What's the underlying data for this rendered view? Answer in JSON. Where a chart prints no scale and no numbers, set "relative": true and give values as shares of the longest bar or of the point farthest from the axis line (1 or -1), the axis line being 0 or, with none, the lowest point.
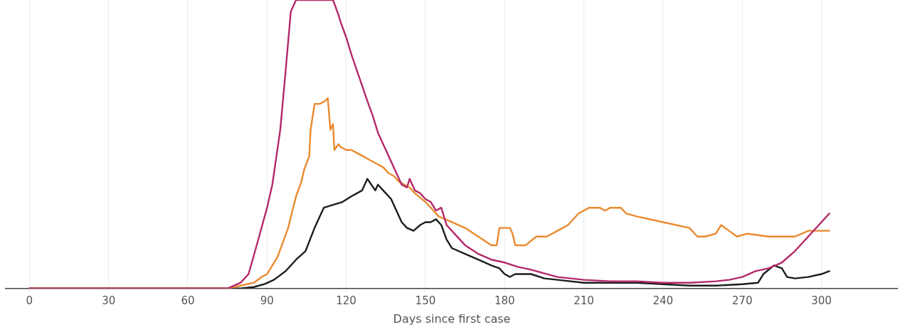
{
  "chart_data": {
    "type": "line",
    "xlabel": "Days since first case",
    "relative": true,
    "grid": "x",
    "marker": "none",
    "line_style": "solid",
    "legend": false,
    "xlim": [
      -9,
      329
    ],
    "xticks": [
      0,
      30,
      60,
      90,
      120,
      150,
      180,
      210,
      240,
      270,
      300
    ],
    "series": [
      {
        "color": "#b4286a",
        "x": [
          0,
          70,
          75,
          80,
          83,
          87,
          90,
          92,
          95,
          97,
          99,
          101,
          115,
          117,
          118,
          120,
          122,
          125,
          128,
          130,
          132,
          135,
          137,
          139,
          141,
          143,
          144,
          146,
          148,
          150,
          152,
          154,
          156,
          158,
          160,
          165,
          170,
          175,
          180,
          185,
          190,
          200,
          210,
          220,
          230,
          240,
          250,
          260,
          265,
          270,
          275,
          280,
          285,
          290,
          295,
          300,
          303
        ],
        "values": [
          0,
          0,
          0,
          0.02,
          0.05,
          0.18,
          0.28,
          0.36,
          0.55,
          0.75,
          0.96,
          1,
          1,
          0.95,
          0.92,
          0.87,
          0.81,
          0.73,
          0.65,
          0.6,
          0.54,
          0.48,
          0.44,
          0.4,
          0.36,
          0.35,
          0.38,
          0.34,
          0.33,
          0.31,
          0.3,
          0.27,
          0.28,
          0.22,
          0.2,
          0.15,
          0.12,
          0.1,
          0.09,
          0.075,
          0.065,
          0.04,
          0.03,
          0.025,
          0.025,
          0.02,
          0.02,
          0.025,
          0.03,
          0.04,
          0.06,
          0.07,
          0.09,
          0.13,
          0.18,
          0.23,
          0.26
        ]
      },
      {
        "color": "#e98a2e",
        "x": [
          0,
          75,
          80,
          85,
          88,
          90,
          94,
          98,
          101,
          103,
          104,
          106,
          106.5,
          108,
          110,
          112,
          113,
          114,
          115,
          115.5,
          117,
          118,
          120,
          122,
          124,
          126,
          128,
          130,
          132,
          134,
          136,
          138,
          140,
          142,
          144,
          146,
          150,
          155,
          160,
          165,
          170,
          175,
          177,
          178,
          182,
          183,
          184,
          188,
          192,
          196,
          200,
          204,
          208,
          212,
          216,
          218,
          220,
          222,
          224,
          226,
          230,
          240,
          250,
          253,
          256,
          260,
          262,
          265,
          268,
          272,
          280,
          290,
          295,
          300,
          303
        ],
        "values": [
          0,
          0,
          0.01,
          0.02,
          0.04,
          0.05,
          0.11,
          0.21,
          0.32,
          0.37,
          0.41,
          0.46,
          0.55,
          0.64,
          0.64,
          0.65,
          0.66,
          0.55,
          0.57,
          0.48,
          0.5,
          0.49,
          0.48,
          0.48,
          0.47,
          0.46,
          0.45,
          0.44,
          0.43,
          0.42,
          0.4,
          0.39,
          0.37,
          0.36,
          0.35,
          0.33,
          0.3,
          0.25,
          0.23,
          0.21,
          0.18,
          0.15,
          0.15,
          0.21,
          0.21,
          0.19,
          0.15,
          0.15,
          0.18,
          0.18,
          0.2,
          0.22,
          0.26,
          0.28,
          0.28,
          0.27,
          0.28,
          0.28,
          0.28,
          0.26,
          0.25,
          0.23,
          0.21,
          0.18,
          0.18,
          0.19,
          0.22,
          0.2,
          0.18,
          0.19,
          0.18,
          0.18,
          0.2,
          0.2,
          0.2
        ]
      },
      {
        "color": "#1c1c1c",
        "x": [
          0,
          80,
          85,
          89,
          92.6,
          97,
          101,
          104.6,
          108,
          111.5,
          115,
          118.6,
          122,
          126,
          128,
          131,
          132,
          134,
          137,
          139,
          141,
          143,
          145.5,
          148,
          150,
          152,
          154,
          156,
          158,
          160,
          165,
          170,
          175,
          178,
          180,
          182,
          184,
          186,
          190,
          195,
          200,
          210,
          220,
          230,
          240,
          250,
          260,
          270,
          276,
          278,
          282,
          285,
          287,
          290,
          295,
          300,
          303
        ],
        "values": [
          0,
          0,
          0.005,
          0.015,
          0.03,
          0.06,
          0.1,
          0.13,
          0.21,
          0.28,
          0.29,
          0.3,
          0.32,
          0.34,
          0.38,
          0.34,
          0.36,
          0.34,
          0.31,
          0.27,
          0.23,
          0.21,
          0.2,
          0.22,
          0.23,
          0.23,
          0.24,
          0.22,
          0.17,
          0.14,
          0.12,
          0.1,
          0.08,
          0.07,
          0.05,
          0.04,
          0.05,
          0.05,
          0.05,
          0.035,
          0.03,
          0.02,
          0.02,
          0.02,
          0.015,
          0.01,
          0.01,
          0.015,
          0.02,
          0.05,
          0.08,
          0.07,
          0.04,
          0.035,
          0.04,
          0.05,
          0.06
        ]
      }
    ]
  }
}
